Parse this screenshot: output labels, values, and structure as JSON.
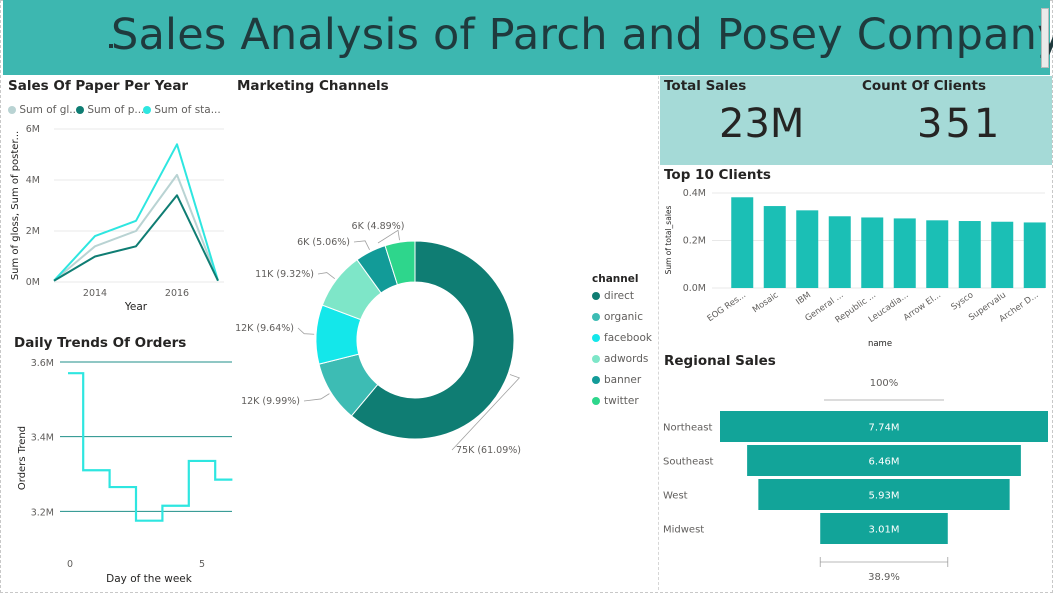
{
  "header": {
    "title": "Sales Analysis of Parch and Posey Company"
  },
  "kpis": [
    {
      "label": "Total Sales",
      "value": "23M"
    },
    {
      "label": "Count Of Clients",
      "value": "351"
    }
  ],
  "colors": {
    "header_bg": "#3db7b0",
    "kpi_bg": "#a5dad7",
    "gloss": "#b9d3d3",
    "poster": "#0f7d73",
    "standard": "#2ee6e0",
    "bar": "#1bbfb5",
    "funnel": "#12a499"
  },
  "chart_data": [
    {
      "type": "line",
      "title": "Sales Of Paper Per Year",
      "xlabel": "Year",
      "ylabel": "Sum of gloss, Sum of poster...",
      "x": [
        2013,
        2014,
        2015,
        2016,
        2017
      ],
      "x_ticks": [
        "2014",
        "2016"
      ],
      "y_ticks": [
        "0M",
        "2M",
        "4M",
        "6M"
      ],
      "ylim": [
        0,
        6
      ],
      "legend": [
        "Sum of gl...",
        "Sum of p...",
        "Sum of sta..."
      ],
      "series": [
        {
          "name": "Sum of gl...",
          "color": "#b9d3d3",
          "values": [
            0.05,
            1.4,
            2.0,
            4.2,
            0.05
          ]
        },
        {
          "name": "Sum of p...",
          "color": "#0f7d73",
          "values": [
            0.05,
            1.0,
            1.4,
            3.4,
            0.05
          ]
        },
        {
          "name": "Sum of sta...",
          "color": "#2ee6e0",
          "values": [
            0.05,
            1.8,
            2.4,
            5.4,
            0.05
          ]
        }
      ]
    },
    {
      "type": "line",
      "title": "Daily Trends Of Orders",
      "xlabel": "Day of the week",
      "ylabel": "Orders Trend",
      "x_ticks": [
        "0",
        "5"
      ],
      "y_ticks": [
        "3.2M",
        "3.4M",
        "3.6M"
      ],
      "ylim": [
        3.15,
        3.6
      ],
      "x": [
        0,
        1,
        2,
        3,
        4,
        5,
        6
      ],
      "values": [
        3.57,
        3.31,
        3.265,
        3.175,
        3.215,
        3.335,
        3.285
      ]
    },
    {
      "type": "pie",
      "title": "Marketing Channels",
      "legend_title": "channel",
      "slices": [
        {
          "name": "direct",
          "value": 61.09,
          "label": "75K (61.09%)",
          "color": "#0f7d73"
        },
        {
          "name": "organic",
          "value": 9.99,
          "label": "12K (9.99%)",
          "color": "#3dbcb4"
        },
        {
          "name": "facebook",
          "value": 9.64,
          "label": "12K (9.64%)",
          "color": "#14e7ea"
        },
        {
          "name": "adwords",
          "value": 9.32,
          "label": "11K (9.32%)",
          "color": "#7ee6c8"
        },
        {
          "name": "banner",
          "value": 5.06,
          "label": "6K (5.06%)",
          "color": "#129b98"
        },
        {
          "name": "twitter",
          "value": 4.89,
          "label": "6K (4.89%)",
          "color": "#2ed68c"
        }
      ]
    },
    {
      "type": "bar",
      "title": "Top 10 Clients",
      "xlabel": "name",
      "ylabel": "Sum of total_sales",
      "y_ticks": [
        "0.0M",
        "0.2M",
        "0.4M"
      ],
      "ylim": [
        0,
        0.4
      ],
      "categories": [
        "EOG Res...",
        "Mosaic",
        "IBM",
        "General ...",
        "Republic ...",
        "Leucadia...",
        "Arrow El...",
        "Sysco",
        "Supervalu",
        "Archer D..."
      ],
      "values": [
        0.382,
        0.345,
        0.327,
        0.302,
        0.297,
        0.293,
        0.285,
        0.282,
        0.279,
        0.276
      ]
    },
    {
      "type": "bar",
      "orientation": "funnel",
      "title": "Regional Sales",
      "top_label": "100%",
      "bottom_label": "38.9%",
      "categories": [
        "Northeast",
        "Southeast",
        "West",
        "Midwest"
      ],
      "values": [
        7.74,
        6.46,
        5.93,
        3.01
      ],
      "value_labels": [
        "7.74M",
        "6.46M",
        "5.93M",
        "3.01M"
      ]
    }
  ]
}
